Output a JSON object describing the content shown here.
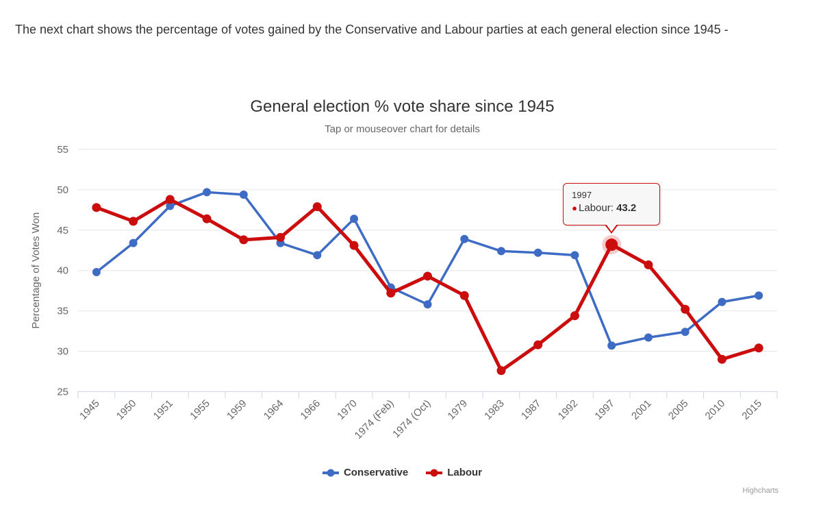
{
  "intro_text": "The next chart shows the percentage of votes gained by the Conservative and Labour parties at each general election since 1945 -",
  "credits": "Highcharts",
  "chart_data": {
    "type": "line",
    "title": "General election % vote share since 1945",
    "subtitle": "Tap or mouseover chart for details",
    "xlabel": "",
    "ylabel": "Percentage of Votes Won",
    "ylim": [
      25,
      55
    ],
    "yticks": [
      25,
      30,
      35,
      40,
      45,
      50,
      55
    ],
    "grid": true,
    "legend_position": "bottom",
    "categories": [
      "1945",
      "1950",
      "1951",
      "1955",
      "1959",
      "1964",
      "1966",
      "1970",
      "1974 (Feb)",
      "1974 (Oct)",
      "1979",
      "1983",
      "1987",
      "1992",
      "1997",
      "2001",
      "2005",
      "2010",
      "2015"
    ],
    "series": [
      {
        "name": "Conservative",
        "color": "#3E6CC5",
        "values": [
          39.8,
          43.4,
          48.0,
          49.7,
          49.4,
          43.4,
          41.9,
          46.4,
          37.9,
          35.8,
          43.9,
          42.4,
          42.2,
          41.9,
          30.7,
          31.7,
          32.4,
          36.1,
          36.9
        ]
      },
      {
        "name": "Labour",
        "color": "#CB0D0E",
        "values": [
          47.8,
          46.1,
          48.8,
          46.4,
          43.8,
          44.1,
          47.9,
          43.1,
          37.2,
          39.3,
          36.9,
          27.6,
          30.8,
          34.4,
          43.2,
          40.7,
          35.2,
          29.0,
          30.4
        ]
      }
    ],
    "tooltip": {
      "header": "1997",
      "series_name": "Labour",
      "series_label": "Labour:",
      "value": "43.2",
      "dot": "●"
    },
    "colors": {
      "grid_line": "#e6e6e6",
      "axis_line": "#ccd6eb",
      "axis_label": "#666666",
      "title": "#333333",
      "subtitle": "#666666",
      "halo_opacity": 0.22
    }
  }
}
